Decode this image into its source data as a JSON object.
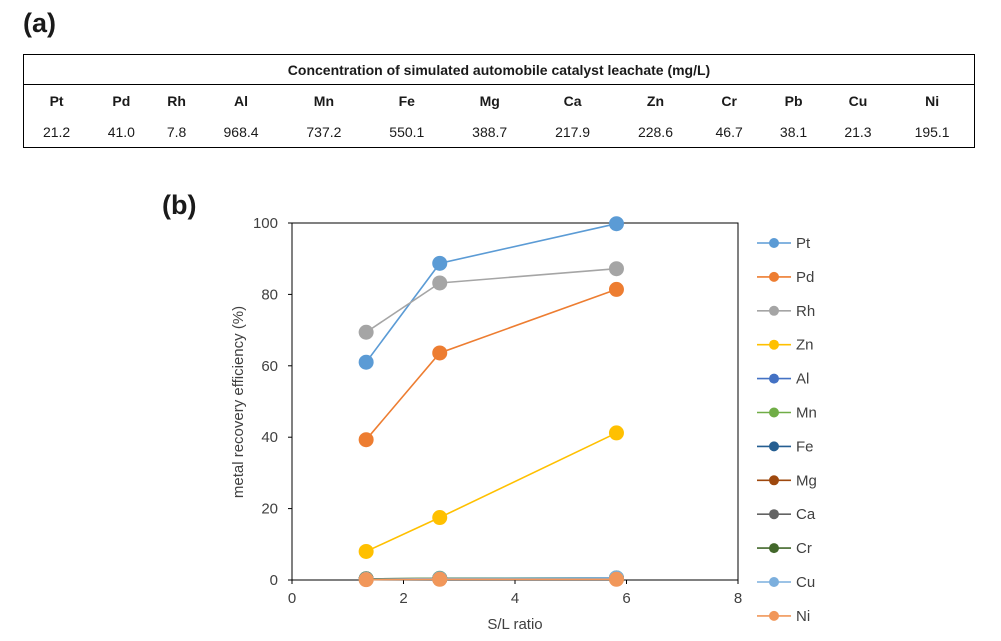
{
  "panel_a": {
    "label": "(a)",
    "table_title": "Concentration of simulated automobile catalyst leachate (mg/L)",
    "headers": [
      "Pt",
      "Pd",
      "Rh",
      "Al",
      "Mn",
      "Fe",
      "Mg",
      "Ca",
      "Zn",
      "Cr",
      "Pb",
      "Cu",
      "Ni"
    ],
    "values": [
      "21.2",
      "41.0",
      "7.8",
      "968.4",
      "737.2",
      "550.1",
      "388.7",
      "217.9",
      "228.6",
      "46.7",
      "38.1",
      "21.3",
      "195.1"
    ]
  },
  "panel_b": {
    "label": "(b)"
  },
  "chart_data": {
    "type": "line",
    "title": "",
    "xlabel": "S/L ratio",
    "ylabel": "metal recovery efficiency (%)",
    "xlim": [
      0,
      8
    ],
    "ylim": [
      0,
      100
    ],
    "xticks": [
      "0",
      "2",
      "4",
      "6",
      "8"
    ],
    "yticks": [
      "0",
      "20",
      "40",
      "60",
      "80",
      "100"
    ],
    "x": [
      1.33,
      2.65,
      5.82
    ],
    "legend_position": "right",
    "series": [
      {
        "name": "Pt",
        "color": "#5b9bd5",
        "values": [
          61,
          88.7,
          99.8
        ]
      },
      {
        "name": "Pd",
        "color": "#ed7d31",
        "values": [
          39.3,
          63.6,
          81.4
        ]
      },
      {
        "name": "Rh",
        "color": "#a5a5a5",
        "values": [
          69.4,
          83.2,
          87.2
        ]
      },
      {
        "name": "Zn",
        "color": "#ffc000",
        "values": [
          8,
          17.5,
          41.2
        ]
      },
      {
        "name": "Al",
        "color": "#4472c4",
        "values": [
          0.3,
          0.4,
          0.5
        ]
      },
      {
        "name": "Mn",
        "color": "#70ad47",
        "values": [
          0.3,
          0.5,
          0.6
        ]
      },
      {
        "name": "Fe",
        "color": "#255e91",
        "values": [
          0.2,
          0.3,
          0.4
        ]
      },
      {
        "name": "Mg",
        "color": "#9e480e",
        "values": [
          0.2,
          0.3,
          0.3
        ]
      },
      {
        "name": "Ca",
        "color": "#636363",
        "values": [
          0.2,
          0.3,
          0.4
        ]
      },
      {
        "name": "Cr",
        "color": "#43682b",
        "values": [
          0.3,
          0.4,
          0.5
        ]
      },
      {
        "name": "Cu",
        "color": "#7cafdd",
        "values": [
          0.2,
          0.4,
          0.6
        ]
      },
      {
        "name": "Ni",
        "color": "#f1975a",
        "values": [
          0.1,
          0.2,
          0.2
        ]
      }
    ]
  }
}
